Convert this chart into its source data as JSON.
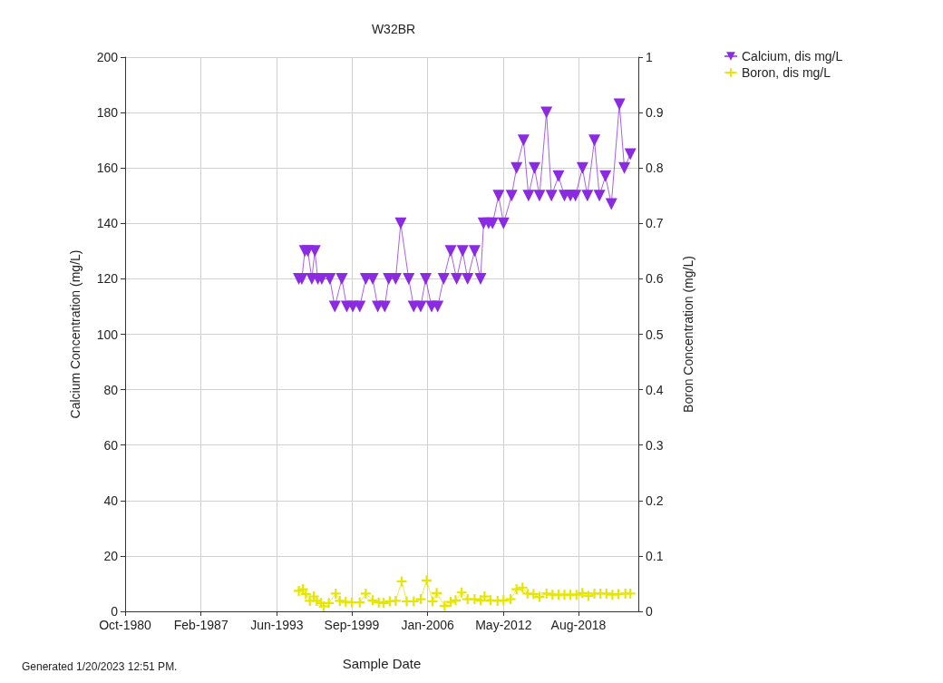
{
  "chart_data": {
    "type": "line",
    "title": "W32BR",
    "xlabel": "Sample Date",
    "ylabel": "Calcium Concentration (mg/L)",
    "y2label": "Boron Concentration (mg/L)",
    "annotations": [
      "Generated 1/20/2023 12:51 PM."
    ],
    "xlim": [
      "1980-10",
      "2023-08"
    ],
    "xticks": [
      {
        "value": "1980-10",
        "label": "Oct-1980"
      },
      {
        "value": "1987-02",
        "label": "Feb-1987"
      },
      {
        "value": "1993-06",
        "label": "Jun-1993"
      },
      {
        "value": "1999-09",
        "label": "Sep-1999"
      },
      {
        "value": "2006-01",
        "label": "Jan-2006"
      },
      {
        "value": "2012-05",
        "label": "May-2012"
      },
      {
        "value": "2018-08",
        "label": "Aug-2018"
      }
    ],
    "ylim": [
      0,
      200
    ],
    "yticks": [
      0,
      20,
      40,
      60,
      80,
      100,
      120,
      140,
      160,
      180,
      200
    ],
    "y2lim": [
      0,
      1
    ],
    "y2ticks": [
      0,
      0.1,
      0.2,
      0.3,
      0.4,
      0.5,
      0.6,
      0.7,
      0.8,
      0.9,
      1
    ],
    "grid": true,
    "legend": "top right",
    "series": [
      {
        "name": "Calcium, dis mg/L",
        "color": "#8a2be2",
        "marker": "triangle",
        "x": [
          "1995-04",
          "1995-07",
          "1995-10",
          "1996-01",
          "1996-05",
          "1996-08",
          "1996-11",
          "1997-03",
          "1997-11",
          "1998-04",
          "1998-11",
          "1999-04",
          "1999-10",
          "2000-05",
          "2000-11",
          "2001-06",
          "2001-11",
          "2002-06",
          "2002-10",
          "2003-05",
          "2003-10",
          "2004-06",
          "2004-11",
          "2005-06",
          "2005-11",
          "2006-05",
          "2006-11",
          "2007-05",
          "2007-12",
          "2008-06",
          "2008-12",
          "2009-05",
          "2009-12",
          "2010-06",
          "2010-09",
          "2011-02",
          "2011-06",
          "2011-12",
          "2012-05",
          "2013-01",
          "2013-06",
          "2014-01",
          "2014-06",
          "2014-12",
          "2015-05",
          "2015-12",
          "2016-05",
          "2016-12",
          "2017-06",
          "2017-12",
          "2018-05",
          "2018-12",
          "2019-05",
          "2019-12",
          "2020-05",
          "2020-11",
          "2021-05",
          "2022-01",
          "2022-06",
          "2022-12"
        ],
        "values": [
          120,
          120,
          130,
          130,
          120,
          130,
          120,
          120,
          120,
          110,
          120,
          110,
          110,
          110,
          120,
          120,
          110,
          110,
          120,
          120,
          140,
          120,
          110,
          110,
          120,
          110,
          110,
          120,
          130,
          120,
          130,
          120,
          130,
          120,
          140,
          140,
          140,
          150,
          140,
          150,
          160,
          170,
          150,
          160,
          150,
          180,
          150,
          157,
          150,
          150,
          150,
          160,
          150,
          170,
          150,
          157,
          147,
          183,
          160,
          165
        ]
      },
      {
        "name": "Boron, dis mg/L",
        "color": "#e6e600",
        "marker": "cross",
        "axis": "y2",
        "x": [
          "1995-04",
          "1995-08",
          "1995-11",
          "1996-03",
          "1996-07",
          "1996-10",
          "1997-02",
          "1997-05",
          "1997-10",
          "1998-05",
          "1998-09",
          "1999-03",
          "1999-09",
          "2000-05",
          "2000-11",
          "2001-06",
          "2001-12",
          "2002-05",
          "2002-11",
          "2003-05",
          "2003-11",
          "2004-04",
          "2004-11",
          "2005-06",
          "2005-12",
          "2006-06",
          "2006-10",
          "2007-06",
          "2007-12",
          "2008-05",
          "2008-11",
          "2009-05",
          "2009-12",
          "2010-06",
          "2010-10",
          "2011-04",
          "2011-11",
          "2012-05",
          "2012-12",
          "2013-06",
          "2013-12",
          "2014-05",
          "2014-11",
          "2015-05",
          "2015-12",
          "2016-06",
          "2016-12",
          "2017-06",
          "2017-12",
          "2018-06",
          "2018-12",
          "2019-06",
          "2019-12",
          "2020-06",
          "2020-12",
          "2021-06",
          "2021-12",
          "2022-07",
          "2022-12"
        ],
        "values": [
          0.037,
          0.04,
          0.031,
          0.019,
          0.027,
          0.019,
          0.015,
          0.009,
          0.015,
          0.032,
          0.019,
          0.017,
          0.016,
          0.016,
          0.032,
          0.02,
          0.016,
          0.015,
          0.018,
          0.019,
          0.054,
          0.018,
          0.018,
          0.022,
          0.056,
          0.018,
          0.033,
          0.01,
          0.017,
          0.02,
          0.034,
          0.022,
          0.022,
          0.02,
          0.027,
          0.02,
          0.019,
          0.02,
          0.022,
          0.04,
          0.043,
          0.032,
          0.031,
          0.026,
          0.032,
          0.03,
          0.03,
          0.03,
          0.03,
          0.03,
          0.033,
          0.028,
          0.032,
          0.032,
          0.032,
          0.03,
          0.031,
          0.032,
          0.032
        ]
      }
    ]
  }
}
